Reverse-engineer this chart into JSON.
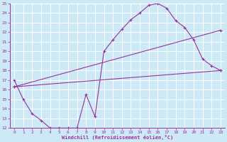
{
  "xlabel": "Windchill (Refroidissement éolien,°C)",
  "background_color": "#cce9f5",
  "grid_color": "#ffffff",
  "line_color": "#993399",
  "xlim": [
    -0.5,
    23.5
  ],
  "ylim": [
    12,
    25
  ],
  "xticks": [
    0,
    1,
    2,
    3,
    4,
    5,
    6,
    7,
    8,
    9,
    10,
    11,
    12,
    13,
    14,
    15,
    16,
    17,
    18,
    19,
    20,
    21,
    22,
    23
  ],
  "yticks": [
    12,
    13,
    14,
    15,
    16,
    17,
    18,
    19,
    20,
    21,
    22,
    23,
    24,
    25
  ],
  "line1_x": [
    0,
    1,
    2,
    3,
    4,
    5,
    6,
    7,
    8,
    9,
    10,
    11,
    12,
    13,
    14,
    15,
    16,
    17,
    18,
    19,
    20,
    21,
    22,
    23
  ],
  "line1_y": [
    17.0,
    15.0,
    13.5,
    12.8,
    12.0,
    12.0,
    12.0,
    12.0,
    15.5,
    13.2,
    20.0,
    21.2,
    22.3,
    23.3,
    24.0,
    24.8,
    25.0,
    24.5,
    23.2,
    22.5,
    21.2,
    19.2,
    18.5,
    18.0
  ],
  "line2_x": [
    0,
    23
  ],
  "line2_y": [
    16.3,
    18.0
  ],
  "line3_x": [
    0,
    23
  ],
  "line3_y": [
    16.3,
    22.2
  ]
}
